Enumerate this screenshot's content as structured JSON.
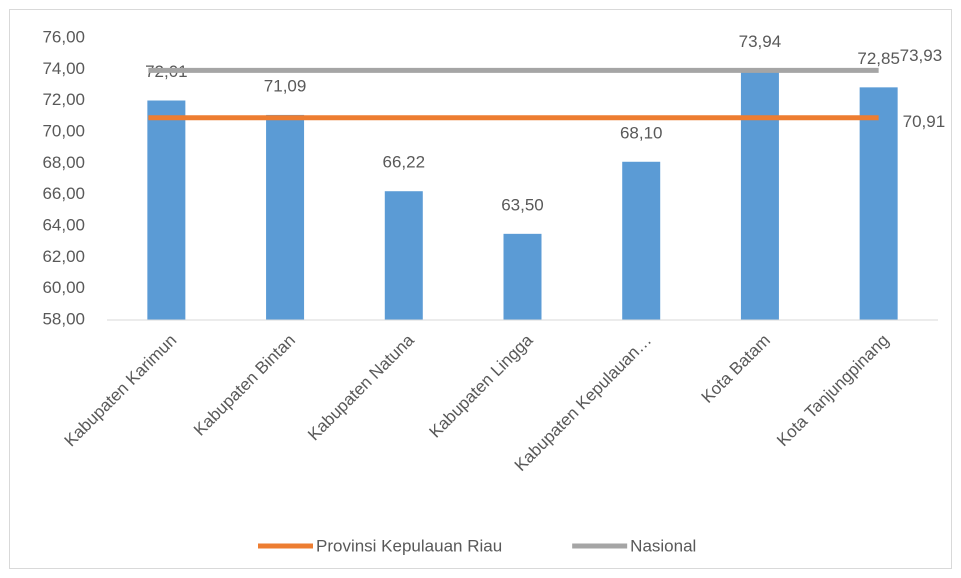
{
  "chart_data": {
    "type": "bar",
    "categories": [
      "Kabupaten Karimun",
      "Kabupaten Bintan",
      "Kabupaten Natuna",
      "Kabupaten Lingga",
      "Kabupaten Kepulauan…",
      "Kota Batam",
      "Kota Tanjungpinang"
    ],
    "values": [
      72.01,
      71.09,
      66.22,
      63.5,
      68.1,
      73.94,
      72.85
    ],
    "value_labels": [
      "72,01",
      "71,09",
      "66,22",
      "63,50",
      "68,10",
      "73,94",
      "72,85"
    ],
    "color": "#5b9bd5",
    "reference_lines": [
      {
        "name": "Provinsi Kepulauan Riau",
        "color": "#ed7d31",
        "value": 70.91,
        "label": "70,91"
      },
      {
        "name": "Nasional",
        "color": "#a5a5a5",
        "value": 73.93,
        "label": "73,93"
      }
    ],
    "ylim": [
      58,
      76
    ],
    "yticks": [
      {
        "value": 58,
        "label": "58,00"
      },
      {
        "value": 60,
        "label": "60,00"
      },
      {
        "value": 62,
        "label": "62,00"
      },
      {
        "value": 64,
        "label": "64,00"
      },
      {
        "value": 66,
        "label": "66,00"
      },
      {
        "value": 68,
        "label": "68,00"
      },
      {
        "value": 70,
        "label": "70,00"
      },
      {
        "value": 72,
        "label": "72,00"
      },
      {
        "value": 74,
        "label": "74,00"
      },
      {
        "value": 76,
        "label": "76,00"
      }
    ],
    "grid": false,
    "legend": "bottom"
  }
}
